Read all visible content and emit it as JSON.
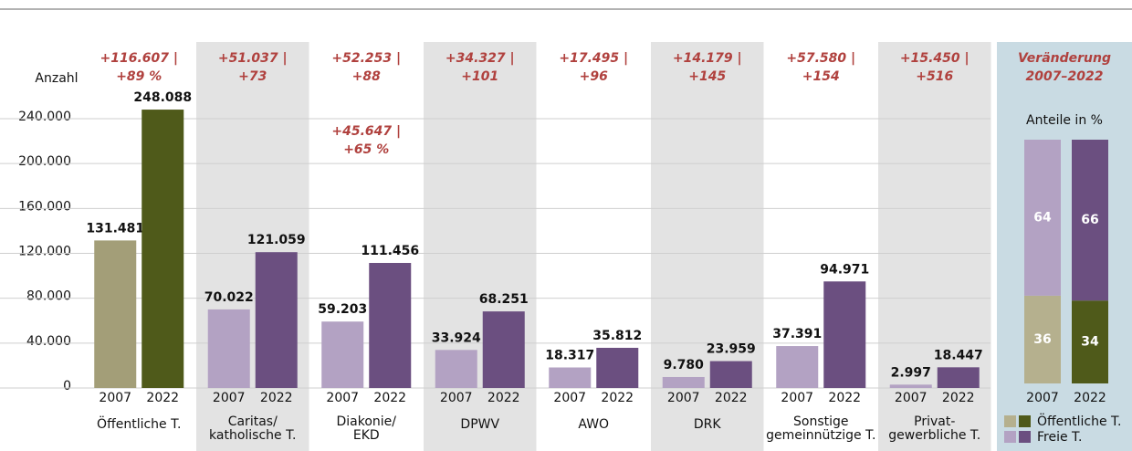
{
  "chart_data": {
    "type": "bar",
    "y_label": "Anzahl",
    "categories": [
      [
        "Öffentliche T."
      ],
      [
        "Caritas/",
        "katholische T."
      ],
      [
        "Diakonie/",
        "EKD"
      ],
      [
        "DPWV"
      ],
      [
        "AWO"
      ],
      [
        "DRK"
      ],
      [
        "Sonstige",
        "gemeinnützige T."
      ],
      [
        "Privat-",
        "gewerbliche T."
      ]
    ],
    "series": [
      {
        "name": "2007",
        "values": [
          131481,
          70022,
          59203,
          33924,
          18317,
          9780,
          37391,
          2997
        ],
        "value_labels": [
          "131.481",
          "70.022",
          "59.203",
          "33.924",
          "18.317",
          "9.780",
          "37.391",
          "2.997"
        ],
        "colors": [
          "#a39e78",
          "#b3a2c3",
          "#b3a2c3",
          "#b3a2c3",
          "#b3a2c3",
          "#b3a2c3",
          "#b3a2c3",
          "#b3a2c3"
        ]
      },
      {
        "name": "2022",
        "values": [
          248088,
          121059,
          111456,
          68251,
          35812,
          23959,
          94971,
          18447
        ],
        "value_labels": [
          "248.088",
          "121.059",
          "111.456",
          "68.251",
          "35.812",
          "23.959",
          "94.971",
          "18.447"
        ],
        "colors": [
          "#4f5a1a",
          "#6b4f80",
          "#6b4f80",
          "#6b4f80",
          "#6b4f80",
          "#6b4f80",
          "#6b4f80",
          "#6b4f80"
        ]
      }
    ],
    "annotations": [
      {
        "lines": [
          "+116.607 |",
          "+89 %"
        ]
      },
      {
        "lines": [
          "+51.037 |",
          "+73"
        ]
      },
      {
        "lines": [
          "+52.253 |",
          "+88"
        ],
        "secondary": [
          "+45.647 |",
          "+65 %"
        ]
      },
      {
        "lines": [
          "+34.327 |",
          "+101"
        ]
      },
      {
        "lines": [
          "+17.495 |",
          "+96"
        ]
      },
      {
        "lines": [
          "+14.179 |",
          "+145"
        ]
      },
      {
        "lines": [
          "+57.580 |",
          "+154"
        ]
      },
      {
        "lines": [
          "+15.450 |",
          "+516"
        ]
      }
    ],
    "ylim": [
      0,
      240000
    ],
    "yticks": [
      0,
      {
        "value": 40000,
        "label": "40.000"
      },
      {
        "value": 80000,
        "label": "80.000"
      },
      {
        "value": 120000,
        "label": "120.000"
      },
      {
        "value": 160000,
        "label": "160.000"
      },
      {
        "value": 200000,
        "label": "200.000"
      },
      {
        "value": 240000,
        "label": "240.000"
      }
    ],
    "grid": true,
    "share_panel": {
      "title": [
        "Veränderung",
        "2007–2022"
      ],
      "subtitle": "Anteile in %",
      "categories": [
        "2007",
        "2022"
      ],
      "ylim": [
        0,
        100
      ],
      "series": [
        {
          "name": "Öffentliche T.",
          "values": [
            36,
            34
          ],
          "colors": [
            "#b5b08e",
            "#4f5a1a"
          ]
        },
        {
          "name": "Freie T.",
          "values": [
            64,
            66
          ],
          "colors": [
            "#b3a2c3",
            "#6b4f80"
          ]
        }
      ]
    }
  }
}
